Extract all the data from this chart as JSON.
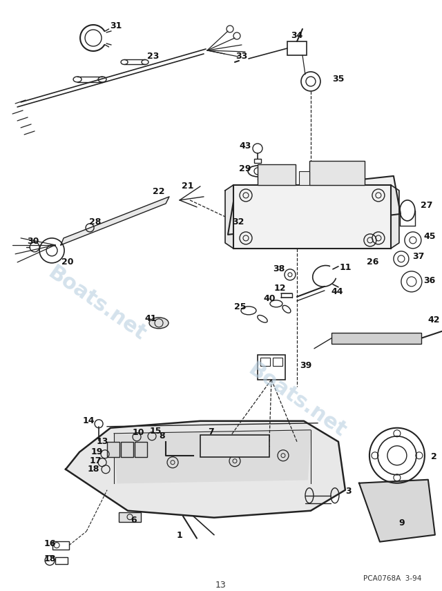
{
  "bg_color": "#ffffff",
  "line_color": "#222222",
  "watermark_color": "#b8cfe0",
  "watermark_text": "Boats.net",
  "diagram_code": "PCA0768A  3-94",
  "figsize": [
    6.4,
    8.56
  ],
  "dpi": 100
}
